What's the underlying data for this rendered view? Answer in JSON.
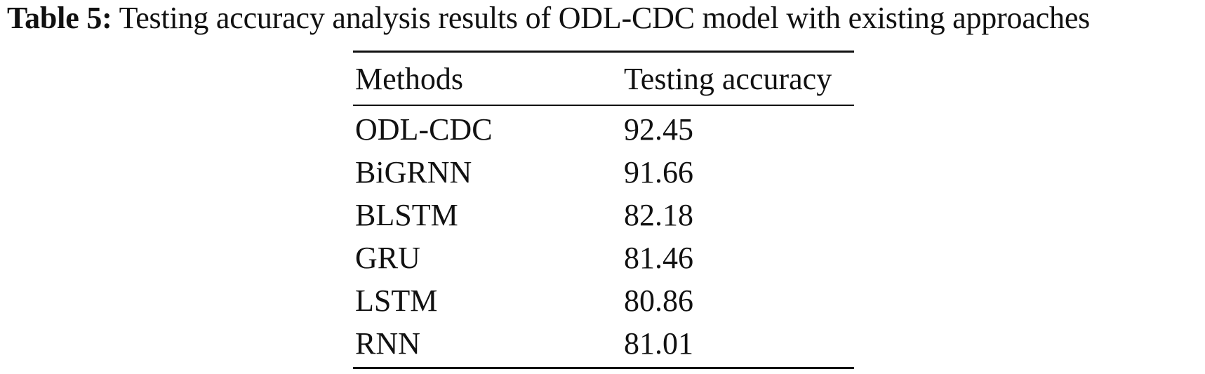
{
  "caption": {
    "label": "Table 5:",
    "text": "Testing accuracy analysis results of ODL-CDC model with existing approaches"
  },
  "table": {
    "headers": [
      "Methods",
      "Testing accuracy"
    ],
    "rows": [
      {
        "method": "ODL-CDC",
        "accuracy": "92.45"
      },
      {
        "method": "BiGRNN",
        "accuracy": "91.66"
      },
      {
        "method": "BLSTM",
        "accuracy": "82.18"
      },
      {
        "method": "GRU",
        "accuracy": "81.46"
      },
      {
        "method": "LSTM",
        "accuracy": "80.86"
      },
      {
        "method": "RNN",
        "accuracy": "81.01"
      }
    ]
  }
}
